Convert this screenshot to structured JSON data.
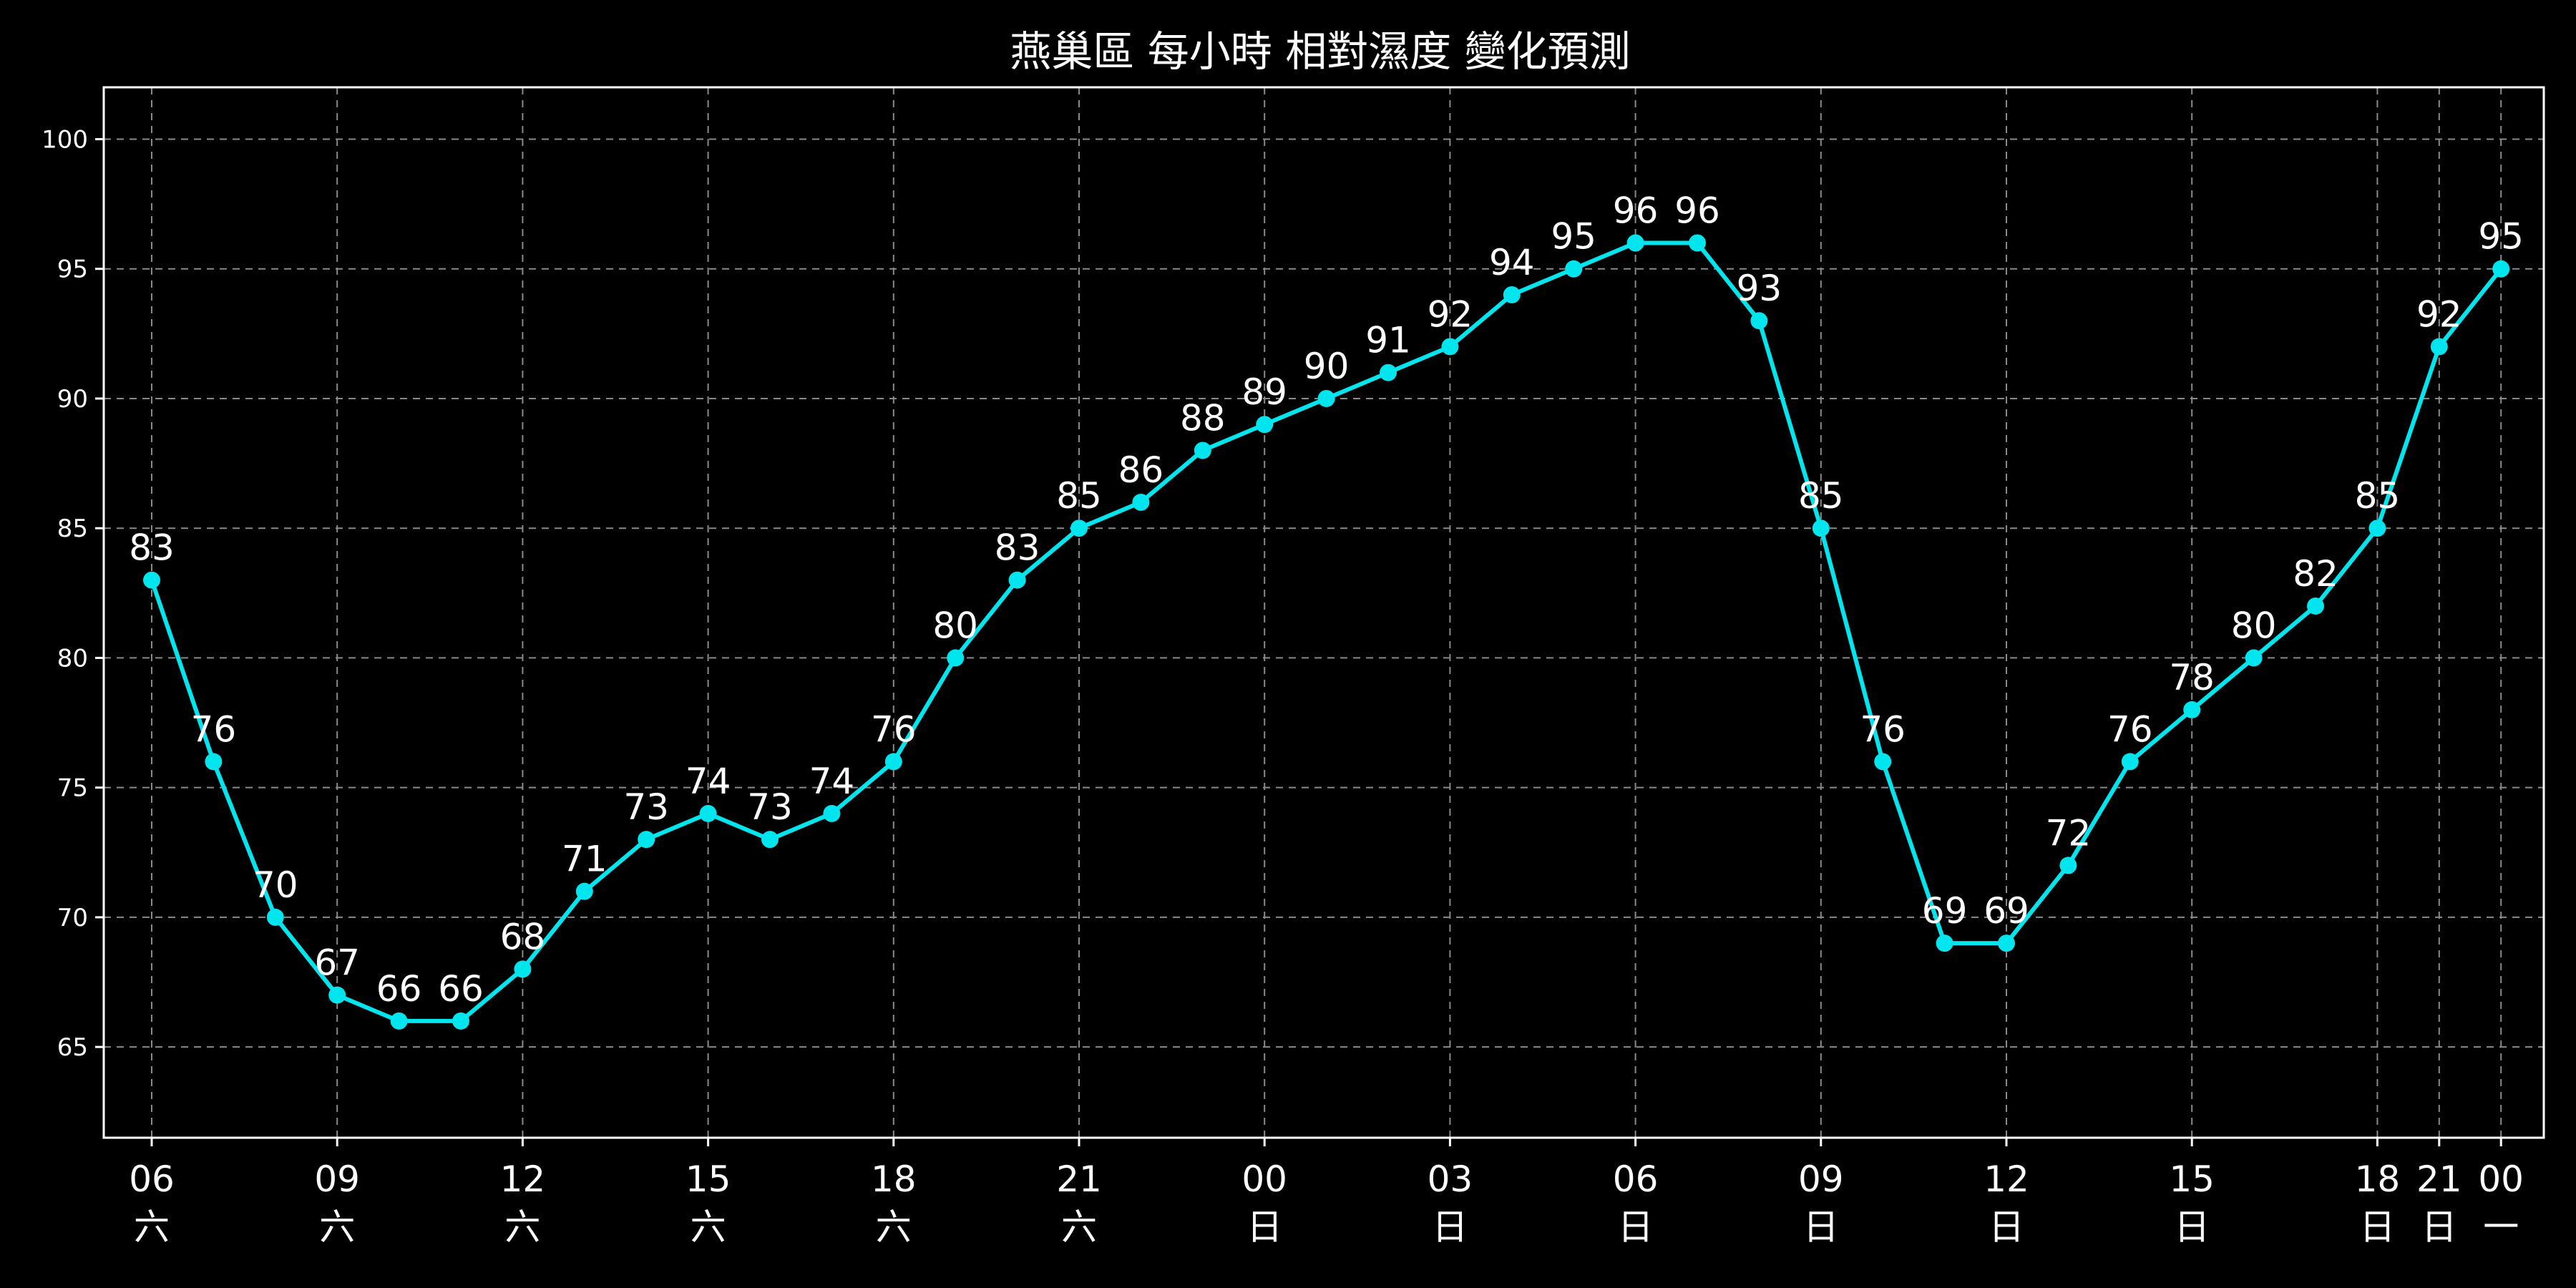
{
  "chart_data": {
    "type": "line",
    "title": "燕巢區 每小時 相對濕度 變化預測",
    "xlabel": "",
    "ylabel": "",
    "ylim": [
      61.5,
      102
    ],
    "yticks": [
      65,
      70,
      75,
      80,
      85,
      90,
      95,
      100
    ],
    "grid": true,
    "colors": {
      "background": "#000000",
      "line": "#00e5ee",
      "text": "#ffffff",
      "grid": "#8a8a8a"
    },
    "x_ticks": [
      {
        "x": 0,
        "hour": "06",
        "day": "六"
      },
      {
        "x": 3,
        "hour": "09",
        "day": "六"
      },
      {
        "x": 6,
        "hour": "12",
        "day": "六"
      },
      {
        "x": 9,
        "hour": "15",
        "day": "六"
      },
      {
        "x": 12,
        "hour": "18",
        "day": "六"
      },
      {
        "x": 15,
        "hour": "21",
        "day": "六"
      },
      {
        "x": 18,
        "hour": "00",
        "day": "日"
      },
      {
        "x": 21,
        "hour": "03",
        "day": "日"
      },
      {
        "x": 24,
        "hour": "06",
        "day": "日"
      },
      {
        "x": 27,
        "hour": "09",
        "day": "日"
      },
      {
        "x": 30,
        "hour": "12",
        "day": "日"
      },
      {
        "x": 33,
        "hour": "15",
        "day": "日"
      },
      {
        "x": 36,
        "hour": "18",
        "day": "日"
      },
      {
        "x": 37,
        "hour": "21",
        "day": "日"
      },
      {
        "x": 38,
        "hour": "00",
        "day": "一"
      }
    ],
    "series": [
      {
        "values": [
          83,
          76,
          70,
          67,
          66,
          66,
          68,
          71,
          73,
          74,
          73,
          74,
          76,
          80,
          83,
          85,
          86,
          88,
          89,
          90,
          91,
          92,
          94,
          95,
          96,
          96,
          93,
          85,
          76,
          69,
          69,
          72,
          76,
          78,
          80,
          82,
          85,
          92,
          95
        ]
      }
    ]
  }
}
